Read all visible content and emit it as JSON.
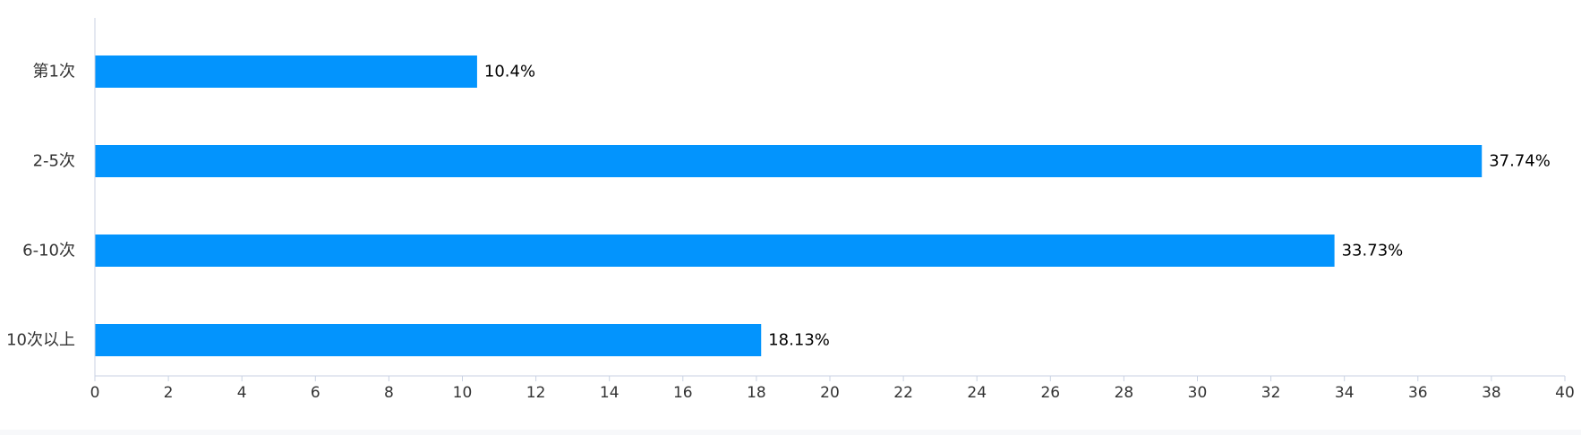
{
  "chart_data": {
    "type": "bar",
    "orientation": "horizontal",
    "categories": [
      "第1次",
      "2-5次",
      "6-10次",
      "10次以上"
    ],
    "values": [
      10.4,
      37.74,
      33.73,
      18.13
    ],
    "data_labels": [
      "10.4%",
      "37.74%",
      "33.73%",
      "18.13%"
    ],
    "xlim": [
      0,
      40
    ],
    "x_ticks": [
      0,
      2,
      4,
      6,
      8,
      10,
      12,
      14,
      16,
      18,
      20,
      22,
      24,
      26,
      28,
      30,
      32,
      34,
      36,
      38,
      40
    ],
    "grid": false,
    "legend": "none",
    "colors": {
      "bar": "#0394fd",
      "axis": "#c9d2e3",
      "text": "#333333",
      "label": "#000000"
    }
  }
}
